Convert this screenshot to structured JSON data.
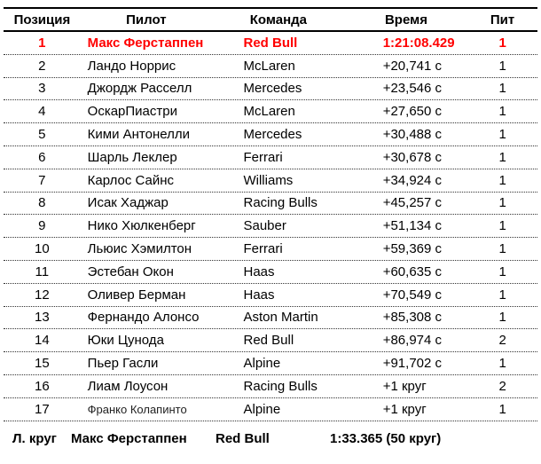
{
  "table": {
    "headers": [
      "Позиция",
      "Пилот",
      "Команда",
      "Время",
      "Пит"
    ],
    "rows": [
      {
        "position": "1",
        "driver": "Макс Ферстаппен",
        "team": "Red Bull",
        "time": "1:21:08.429",
        "pits": "1",
        "highlight": true
      },
      {
        "position": "2",
        "driver": "Ландо Норрис",
        "team": "McLaren",
        "time": "+20,741 с",
        "pits": "1"
      },
      {
        "position": "3",
        "driver": "Джордж Расселл",
        "team": "Mercedes",
        "time": "+23,546 с",
        "pits": "1"
      },
      {
        "position": "4",
        "driver": "ОскарПиастри",
        "team": "McLaren",
        "time": "+27,650 с",
        "pits": "1"
      },
      {
        "position": "5",
        "driver": "Кими Антонелли",
        "team": "Mercedes",
        "time": "+30,488 с",
        "pits": "1"
      },
      {
        "position": "6",
        "driver": "Шарль Леклер",
        "team": "Ferrari",
        "time": "+30,678 с",
        "pits": "1"
      },
      {
        "position": "7",
        "driver": "Карлос Сайнс",
        "team": "Williams",
        "time": "+34,924 с",
        "pits": "1"
      },
      {
        "position": "8",
        "driver": "Исак Хаджар",
        "team": "Racing Bulls",
        "time": "+45,257 с",
        "pits": "1"
      },
      {
        "position": "9",
        "driver": "Нико Хюлкенберг",
        "team": "Sauber",
        "time": "+51,134 с",
        "pits": "1"
      },
      {
        "position": "10",
        "driver": "Льюис Хэмилтон",
        "team": "Ferrari",
        "time": "+59,369 с",
        "pits": "1"
      },
      {
        "position": "11",
        "driver": "Эстебан Окон",
        "team": "Haas",
        "time": "+60,635 с",
        "pits": "1"
      },
      {
        "position": "12",
        "driver": "Оливер Берман",
        "team": "Haas",
        "time": "+70,549 с",
        "pits": "1"
      },
      {
        "position": "13",
        "driver": "Фернандо Алонсо",
        "team": "Aston Martin",
        "time": "+85,308 с",
        "pits": "1"
      },
      {
        "position": "14",
        "driver": "Юки Цунода",
        "team": "Red Bull",
        "time": "+86,974 с",
        "pits": "2"
      },
      {
        "position": "15",
        "driver": "Пьер Гасли",
        "team": "Alpine",
        "time": "+91,702 с",
        "pits": "1"
      },
      {
        "position": "16",
        "driver": "Лиам Лоусон",
        "team": "Racing Bulls",
        "time": "+1 круг",
        "pits": "2"
      },
      {
        "position": "17",
        "driver": "Франко Колапинто",
        "team": "Alpine",
        "time": "+1 круг",
        "pits": "1",
        "small_driver_font": true
      }
    ],
    "fastest_lap": {
      "label": "Л. круг",
      "driver": "Макс Ферстаппен",
      "team": "Red Bull",
      "time": "1:33.365 (50 круг)"
    }
  },
  "colors": {
    "highlight_red": "#ff0000",
    "text": "#000000"
  }
}
